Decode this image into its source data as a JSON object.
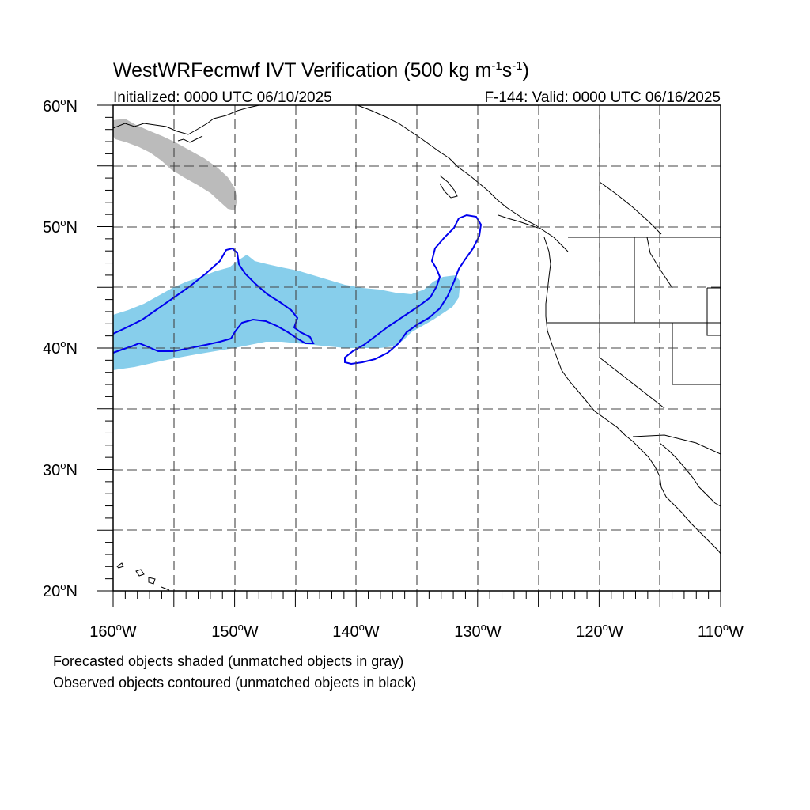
{
  "title": {
    "main": "WestWRFecmwf IVT Verification (500 kg m",
    "exp1": "-1",
    "mid": "s",
    "exp2": "-1",
    "end": ")"
  },
  "subtitle_left": "Initialized: 0000 UTC 06/10/2025",
  "subtitle_right": "F-144: Valid: 0000 UTC 06/16/2025",
  "lat_labels": [
    {
      "deg": "60",
      "hemi": "N"
    },
    {
      "deg": "50",
      "hemi": "N"
    },
    {
      "deg": "40",
      "hemi": "N"
    },
    {
      "deg": "30",
      "hemi": "N"
    },
    {
      "deg": "20",
      "hemi": "N"
    }
  ],
  "lon_labels": [
    {
      "deg": "160",
      "hemi": "W"
    },
    {
      "deg": "150",
      "hemi": "W"
    },
    {
      "deg": "140",
      "hemi": "W"
    },
    {
      "deg": "130",
      "hemi": "W"
    },
    {
      "deg": "120",
      "hemi": "W"
    },
    {
      "deg": "110",
      "hemi": "W"
    }
  ],
  "notes": [
    "Forecasted objects shaded (unmatched objects in gray)",
    "Observed objects contoured (unmatched objects in black)"
  ],
  "colors": {
    "matched_forecast_fill": "#87ceeb",
    "unmatched_forecast_fill": "#bbbbbb",
    "observed_contour": "#0000ee",
    "coastline": "#000000",
    "grid": "#444444"
  },
  "map_extent": {
    "lon": [
      -160,
      -110
    ],
    "lat": [
      20,
      60
    ]
  }
}
